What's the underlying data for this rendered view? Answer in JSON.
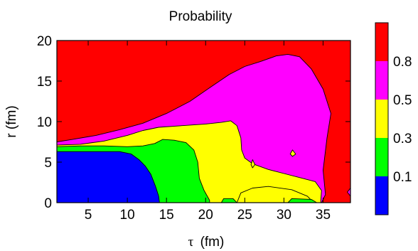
{
  "chart_data": {
    "type": "heatmap",
    "title": "Probability",
    "xlabel_symbol": "τ",
    "xlabel_unit": "(fm)",
    "ylabel": "r (fm)",
    "xlim": [
      1,
      38.5
    ],
    "ylim": [
      0,
      20
    ],
    "x_ticks": [
      5,
      10,
      15,
      20,
      25,
      30,
      35
    ],
    "y_ticks": [
      0,
      5,
      10,
      15,
      20
    ],
    "colorbar": {
      "labels": [
        "0.1",
        "0.3",
        "0.5",
        "0.8"
      ],
      "bands": [
        {
          "color": "#0000ff"
        },
        {
          "color": "#00ff00"
        },
        {
          "color": "#ffff00"
        },
        {
          "color": "#ff00ff"
        },
        {
          "color": "#ff0000"
        }
      ]
    },
    "regions": [
      {
        "name": "magenta-region",
        "color": "#ff00ff",
        "points": [
          [
            1,
            7.5
          ],
          [
            3,
            7.8
          ],
          [
            6,
            8.3
          ],
          [
            9,
            9.0
          ],
          [
            12,
            9.8
          ],
          [
            15,
            11.0
          ],
          [
            18,
            12.5
          ],
          [
            21,
            14.5
          ],
          [
            23,
            15.8
          ],
          [
            25,
            16.8
          ],
          [
            27,
            17.4
          ],
          [
            29,
            18.1
          ],
          [
            30.5,
            18.3
          ],
          [
            32,
            18.0
          ],
          [
            33.5,
            16.5
          ],
          [
            35,
            14.0
          ],
          [
            36,
            11.0
          ],
          [
            35.5,
            8.0
          ],
          [
            35,
            4.0
          ],
          [
            35.3,
            1.0
          ],
          [
            34.8,
            0
          ],
          [
            1,
            0
          ]
        ]
      },
      {
        "name": "yellow-region",
        "color": "#ffff00",
        "points": [
          [
            1,
            7.1
          ],
          [
            4,
            7.2
          ],
          [
            7,
            7.6
          ],
          [
            10,
            8.3
          ],
          [
            12,
            8.9
          ],
          [
            14,
            9.3
          ],
          [
            17,
            9.5
          ],
          [
            20,
            9.7
          ],
          [
            22,
            9.9
          ],
          [
            23.2,
            10.1
          ],
          [
            24,
            9.5
          ],
          [
            24.5,
            8.0
          ],
          [
            24.6,
            6.5
          ],
          [
            25,
            5.5
          ],
          [
            26,
            4.8
          ],
          [
            28,
            4.1
          ],
          [
            30,
            3.6
          ],
          [
            32,
            3.1
          ],
          [
            34,
            2.6
          ],
          [
            34.8,
            1.5
          ],
          [
            34.7,
            0
          ],
          [
            1,
            0
          ]
        ]
      },
      {
        "name": "green-region",
        "color": "#00ff00",
        "points": [
          [
            1,
            6.9
          ],
          [
            4,
            7.0
          ],
          [
            7,
            7.0
          ],
          [
            10,
            6.9
          ],
          [
            12,
            7.0
          ],
          [
            13.5,
            7.3
          ],
          [
            14.5,
            7.8
          ],
          [
            16,
            7.7
          ],
          [
            17.5,
            7.4
          ],
          [
            18.5,
            6.5
          ],
          [
            19,
            5.0
          ],
          [
            19.2,
            3.0
          ],
          [
            19.8,
            1.5
          ],
          [
            20.5,
            0.3
          ],
          [
            20.5,
            0
          ],
          [
            1,
            0
          ]
        ]
      },
      {
        "name": "blue-region",
        "color": "#0000ff",
        "points": [
          [
            1,
            6.3
          ],
          [
            9,
            6.3
          ],
          [
            10.5,
            6.0
          ],
          [
            11.5,
            5.3
          ],
          [
            12.3,
            4.5
          ],
          [
            13,
            3.5
          ],
          [
            13.6,
            2.0
          ],
          [
            14,
            0.8
          ],
          [
            14.1,
            0
          ],
          [
            1,
            0
          ]
        ]
      }
    ],
    "islands": [
      {
        "name": "yellow-island-1",
        "color": "#ffff00",
        "points": [
          [
            24,
            0
          ],
          [
            24.5,
            1.2
          ],
          [
            26,
            1.8
          ],
          [
            28,
            2.0
          ],
          [
            31,
            1.6
          ],
          [
            33,
            0.8
          ],
          [
            33.8,
            0
          ]
        ]
      },
      {
        "name": "green-island-1",
        "color": "#00ff00",
        "points": [
          [
            22,
            0
          ],
          [
            22.3,
            0.5
          ],
          [
            23.5,
            0.5
          ],
          [
            24,
            0
          ]
        ]
      },
      {
        "name": "green-island-2",
        "color": "#00ff00",
        "points": [
          [
            30.5,
            0
          ],
          [
            31,
            0.5
          ],
          [
            33.5,
            0.4
          ],
          [
            34.2,
            0
          ]
        ]
      },
      {
        "name": "yellow-dot-1",
        "color": "#ffff00",
        "points": [
          [
            25.8,
            4.7
          ],
          [
            26,
            5.3
          ],
          [
            26.3,
            4.7
          ],
          [
            26,
            4.3
          ]
        ]
      },
      {
        "name": "yellow-dot-2",
        "color": "#ffff00",
        "points": [
          [
            30.8,
            6.0
          ],
          [
            31.1,
            6.5
          ],
          [
            31.5,
            6.0
          ],
          [
            31.1,
            5.7
          ]
        ]
      },
      {
        "name": "magenta-edge",
        "color": "#ff00ff",
        "points": [
          [
            38.5,
            0.8
          ],
          [
            38.1,
            1.3
          ],
          [
            38.5,
            1.8
          ]
        ]
      }
    ]
  }
}
